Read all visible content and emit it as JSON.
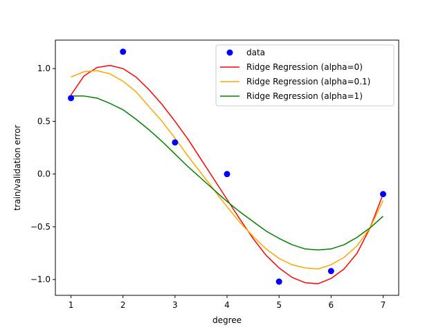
{
  "chart_data": {
    "type": "scatter",
    "title": "",
    "xlabel": "degree",
    "ylabel": "train/validation error",
    "xlim": [
      0.7,
      7.3
    ],
    "ylim": [
      -1.15,
      1.27
    ],
    "xticks": [
      1,
      2,
      3,
      4,
      5,
      6,
      7
    ],
    "yticks": [
      -1.0,
      -0.5,
      0.0,
      0.5,
      1.0
    ],
    "ytick_labels": [
      "−1.0",
      "−0.5",
      "0.0",
      "0.5",
      "1.0"
    ],
    "grid": false,
    "legend_position": "top-right",
    "points": {
      "name": "data",
      "color": "#0000ff",
      "x": [
        1,
        2,
        3,
        4,
        5,
        6,
        7
      ],
      "y": [
        0.72,
        1.16,
        0.3,
        0.0,
        -1.02,
        -0.92,
        -0.19
      ]
    },
    "series": [
      {
        "name": "Ridge Regression (alpha=0)",
        "color": "#ff0000",
        "x": [
          1.0,
          1.25,
          1.5,
          1.75,
          2.0,
          2.25,
          2.5,
          2.75,
          3.0,
          3.25,
          3.5,
          3.75,
          4.0,
          4.25,
          4.5,
          4.75,
          5.0,
          5.25,
          5.5,
          5.75,
          6.0,
          6.25,
          6.5,
          6.75,
          7.0
        ],
        "y": [
          0.75,
          0.93,
          1.01,
          1.03,
          1.0,
          0.92,
          0.8,
          0.66,
          0.5,
          0.33,
          0.14,
          -0.05,
          -0.24,
          -0.43,
          -0.61,
          -0.77,
          -0.89,
          -0.98,
          -1.03,
          -1.04,
          -0.99,
          -0.9,
          -0.75,
          -0.51,
          -0.19
        ]
      },
      {
        "name": "Ridge Regression (alpha=0.1)",
        "color": "#ffa500",
        "x": [
          1.0,
          1.25,
          1.5,
          1.75,
          2.0,
          2.25,
          2.5,
          2.75,
          3.0,
          3.25,
          3.5,
          3.75,
          4.0,
          4.25,
          4.5,
          4.75,
          5.0,
          5.25,
          5.5,
          5.75,
          6.0,
          6.25,
          6.5,
          6.75,
          7.0
        ],
        "y": [
          0.92,
          0.97,
          0.98,
          0.95,
          0.88,
          0.78,
          0.64,
          0.5,
          0.34,
          0.17,
          0.01,
          -0.15,
          -0.31,
          -0.46,
          -0.59,
          -0.71,
          -0.8,
          -0.86,
          -0.89,
          -0.9,
          -0.86,
          -0.79,
          -0.68,
          -0.51,
          -0.25
        ]
      },
      {
        "name": "Ridge Regression (alpha=1)",
        "color": "#008000",
        "x": [
          1.0,
          1.25,
          1.5,
          1.75,
          2.0,
          2.25,
          2.5,
          2.75,
          3.0,
          3.25,
          3.5,
          3.75,
          4.0,
          4.25,
          4.5,
          4.75,
          5.0,
          5.25,
          5.5,
          5.75,
          6.0,
          6.25,
          6.5,
          6.75,
          7.0
        ],
        "y": [
          0.74,
          0.74,
          0.72,
          0.67,
          0.61,
          0.52,
          0.42,
          0.31,
          0.19,
          0.07,
          -0.04,
          -0.15,
          -0.26,
          -0.36,
          -0.45,
          -0.54,
          -0.61,
          -0.67,
          -0.71,
          -0.72,
          -0.71,
          -0.67,
          -0.6,
          -0.51,
          -0.4
        ]
      }
    ]
  }
}
